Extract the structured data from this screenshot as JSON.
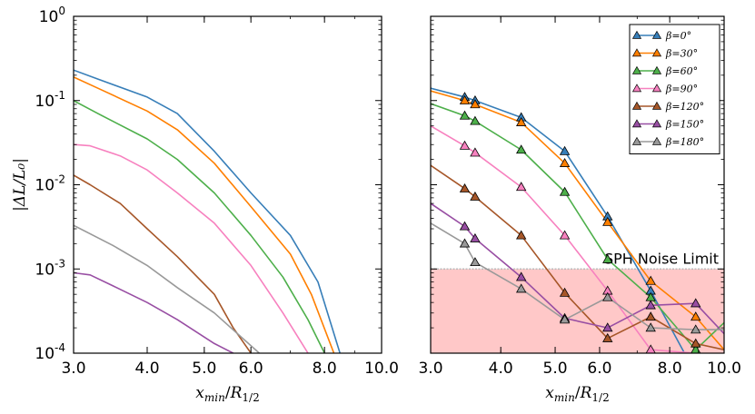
{
  "chart_data": [
    {
      "type": "line",
      "panel": "left",
      "ylabel": "|ΔL/L₀|",
      "xlabel": "x_min/R_1/2",
      "xlabel_parts": {
        "x": "x",
        "sub1": "min",
        "R": "R",
        "sub2": "1/2"
      },
      "xscale": "log",
      "yscale": "log",
      "xlim": [
        3.0,
        10.0
      ],
      "ylim": [
        0.0001,
        1.0
      ],
      "xticks": [
        {
          "value": 3.0,
          "label": "3.0"
        },
        {
          "value": 4.0,
          "label": "4.0"
        },
        {
          "value": 5.0,
          "label": "5.0"
        },
        {
          "value": 6.0,
          "label": "6.0"
        },
        {
          "value": 8.0,
          "label": "8.0"
        },
        {
          "value": 10.0,
          "label": "10.0"
        }
      ],
      "yticks": [
        {
          "value": 1.0,
          "mantissa": "10",
          "exp": "0"
        },
        {
          "value": 0.1,
          "mantissa": "10",
          "exp": "-1"
        },
        {
          "value": 0.01,
          "mantissa": "10",
          "exp": "-2"
        },
        {
          "value": 0.001,
          "mantissa": "10",
          "exp": "-3"
        },
        {
          "value": 0.0001,
          "mantissa": "10",
          "exp": "-4"
        }
      ],
      "series": [
        {
          "name": "β=0°",
          "color": "#377eb8",
          "x": [
            3.0,
            3.3,
            4.0,
            4.5,
            5.2,
            6.0,
            7.0,
            7.8,
            8.5
          ],
          "y": [
            0.23,
            0.18,
            0.11,
            0.07,
            0.025,
            0.008,
            0.0025,
            0.0007,
            0.0001
          ]
        },
        {
          "name": "β=30°",
          "color": "#ff7f00",
          "x": [
            3.0,
            3.3,
            4.0,
            4.5,
            5.2,
            6.0,
            7.0,
            7.6,
            8.3
          ],
          "y": [
            0.19,
            0.14,
            0.075,
            0.045,
            0.018,
            0.0055,
            0.0015,
            0.0005,
            0.0001
          ]
        },
        {
          "name": "β=60°",
          "color": "#4daf4a",
          "x": [
            3.0,
            3.3,
            4.0,
            4.5,
            5.2,
            6.0,
            6.8,
            7.5,
            8.0
          ],
          "y": [
            0.1,
            0.07,
            0.035,
            0.02,
            0.008,
            0.0025,
            0.0008,
            0.00025,
            0.0001
          ]
        },
        {
          "name": "β=90°",
          "color": "#f781bf",
          "x": [
            3.0,
            3.2,
            3.6,
            4.0,
            4.5,
            5.2,
            6.0,
            6.8,
            7.5
          ],
          "y": [
            0.03,
            0.029,
            0.022,
            0.015,
            0.008,
            0.0035,
            0.0011,
            0.0003,
            0.0001
          ]
        },
        {
          "name": "β=120°",
          "color": "#a65628",
          "x": [
            3.0,
            3.2,
            3.6,
            4.0,
            4.5,
            5.2,
            5.6,
            6.0
          ],
          "y": [
            0.013,
            0.01,
            0.006,
            0.003,
            0.0014,
            0.0005,
            0.0002,
            0.0001
          ]
        },
        {
          "name": "β=150°",
          "color": "#984ea3",
          "x": [
            3.0,
            3.2,
            3.5,
            4.0,
            4.5,
            5.2,
            5.6
          ],
          "y": [
            0.0009,
            0.00085,
            0.00063,
            0.0004,
            0.00025,
            0.00013,
            0.0001
          ]
        },
        {
          "name": "β=180°",
          "color": "#999999",
          "x": [
            3.0,
            3.5,
            4.0,
            4.5,
            5.2,
            6.2
          ],
          "y": [
            0.0033,
            0.0019,
            0.0011,
            0.0006,
            0.0003,
            0.0001
          ]
        }
      ]
    },
    {
      "type": "line",
      "panel": "right",
      "xlabel": "x_min/R_1/2",
      "xlabel_parts": {
        "x": "x",
        "sub1": "min",
        "R": "R",
        "sub2": "1/2"
      },
      "xscale": "log",
      "yscale": "log",
      "xlim": [
        3.0,
        10.0
      ],
      "ylim": [
        0.0001,
        1.0
      ],
      "xticks": [
        {
          "value": 3.0,
          "label": "3.0"
        },
        {
          "value": 4.0,
          "label": "4.0"
        },
        {
          "value": 5.0,
          "label": "5.0"
        },
        {
          "value": 6.0,
          "label": "6.0"
        },
        {
          "value": 8.0,
          "label": "8.0"
        },
        {
          "value": 10.0,
          "label": "10.0"
        }
      ],
      "noise_limit": {
        "value": 0.001,
        "label": "SPH Noise Limit",
        "fill_color": "#ffc8c8",
        "line_color": "#bbbbbb"
      },
      "legend_position": "top-right",
      "marker": "triangle",
      "series": [
        {
          "name": "β=0°",
          "beta": "0",
          "color": "#377eb8",
          "x": [
            3.0,
            3.45,
            3.6,
            4.35,
            5.2,
            6.2,
            7.4,
            8.5
          ],
          "y": [
            0.14,
            0.11,
            0.1,
            0.063,
            0.025,
            0.0042,
            0.00055,
            0.0001
          ],
          "markers": [
            [
              3.45,
              0.11
            ],
            [
              3.6,
              0.1
            ],
            [
              4.35,
              0.063
            ],
            [
              5.2,
              0.025
            ],
            [
              6.2,
              0.0042
            ],
            [
              7.4,
              0.00055
            ]
          ]
        },
        {
          "name": "β=30°",
          "beta": "30",
          "color": "#ff7f00",
          "x": [
            3.0,
            3.45,
            3.6,
            4.35,
            5.2,
            6.2,
            7.4,
            8.9,
            10.0
          ],
          "y": [
            0.13,
            0.1,
            0.09,
            0.055,
            0.018,
            0.0036,
            0.00072,
            0.00027,
            0.00011
          ],
          "markers": [
            [
              3.45,
              0.1
            ],
            [
              3.6,
              0.09
            ],
            [
              4.35,
              0.055
            ],
            [
              5.2,
              0.018
            ],
            [
              6.2,
              0.0036
            ],
            [
              7.4,
              0.00072
            ],
            [
              8.9,
              0.00027
            ]
          ]
        },
        {
          "name": "β=60°",
          "beta": "60",
          "color": "#4daf4a",
          "x": [
            3.0,
            3.45,
            3.6,
            4.35,
            5.2,
            6.2,
            7.4,
            8.9,
            10.0
          ],
          "y": [
            0.092,
            0.066,
            0.057,
            0.026,
            0.0082,
            0.0013,
            0.00046,
            0.00011,
            0.00023
          ],
          "markers": [
            [
              3.45,
              0.066
            ],
            [
              3.6,
              0.057
            ],
            [
              4.35,
              0.026
            ],
            [
              5.2,
              0.0082
            ],
            [
              6.2,
              0.0013
            ],
            [
              7.4,
              0.00046
            ],
            [
              8.9,
              0.00011
            ]
          ]
        },
        {
          "name": "β=90°",
          "beta": "90",
          "color": "#f781bf",
          "x": [
            3.0,
            3.45,
            3.6,
            4.35,
            5.2,
            6.2,
            7.4,
            8.9
          ],
          "y": [
            0.05,
            0.029,
            0.024,
            0.0094,
            0.0025,
            0.00055,
            0.00011,
            0.0001
          ],
          "markers": [
            [
              3.45,
              0.029
            ],
            [
              3.6,
              0.024
            ],
            [
              4.35,
              0.0094
            ],
            [
              5.2,
              0.0025
            ],
            [
              6.2,
              0.00055
            ],
            [
              7.4,
              0.00011
            ]
          ]
        },
        {
          "name": "β=120°",
          "beta": "120",
          "color": "#a65628",
          "x": [
            3.0,
            3.45,
            3.6,
            4.35,
            5.2,
            6.2,
            7.4,
            8.9,
            10.0
          ],
          "y": [
            0.017,
            0.009,
            0.0072,
            0.0025,
            0.00052,
            0.00015,
            0.00027,
            0.00013,
            0.00011
          ],
          "markers": [
            [
              3.45,
              0.009
            ],
            [
              3.6,
              0.0072
            ],
            [
              4.35,
              0.0025
            ],
            [
              5.2,
              0.00052
            ],
            [
              6.2,
              0.00015
            ],
            [
              7.4,
              0.00027
            ],
            [
              8.9,
              0.00013
            ]
          ]
        },
        {
          "name": "β=150°",
          "beta": "150",
          "color": "#984ea3",
          "x": [
            3.0,
            3.45,
            3.6,
            4.35,
            5.2,
            6.2,
            7.4,
            8.9,
            10.0
          ],
          "y": [
            0.006,
            0.0032,
            0.0023,
            0.0008,
            0.00026,
            0.0002,
            0.00037,
            0.00039,
            0.00017
          ],
          "markers": [
            [
              3.45,
              0.0032
            ],
            [
              3.6,
              0.0023
            ],
            [
              4.35,
              0.0008
            ],
            [
              5.2,
              0.00026
            ],
            [
              6.2,
              0.0002
            ],
            [
              7.4,
              0.00037
            ],
            [
              8.9,
              0.00039
            ]
          ]
        },
        {
          "name": "β=180°",
          "beta": "180",
          "color": "#999999",
          "x": [
            3.0,
            3.45,
            3.6,
            4.35,
            5.2,
            6.2,
            7.4,
            8.9,
            10.0
          ],
          "y": [
            0.0035,
            0.002,
            0.0012,
            0.00058,
            0.00025,
            0.00046,
            0.0002,
            0.00019,
            0.00019
          ],
          "markers": [
            [
              3.45,
              0.002
            ],
            [
              3.6,
              0.0012
            ],
            [
              4.35,
              0.00058
            ],
            [
              5.2,
              0.00025
            ],
            [
              6.2,
              0.00046
            ],
            [
              7.4,
              0.0002
            ],
            [
              8.9,
              0.00019
            ]
          ]
        }
      ]
    }
  ]
}
